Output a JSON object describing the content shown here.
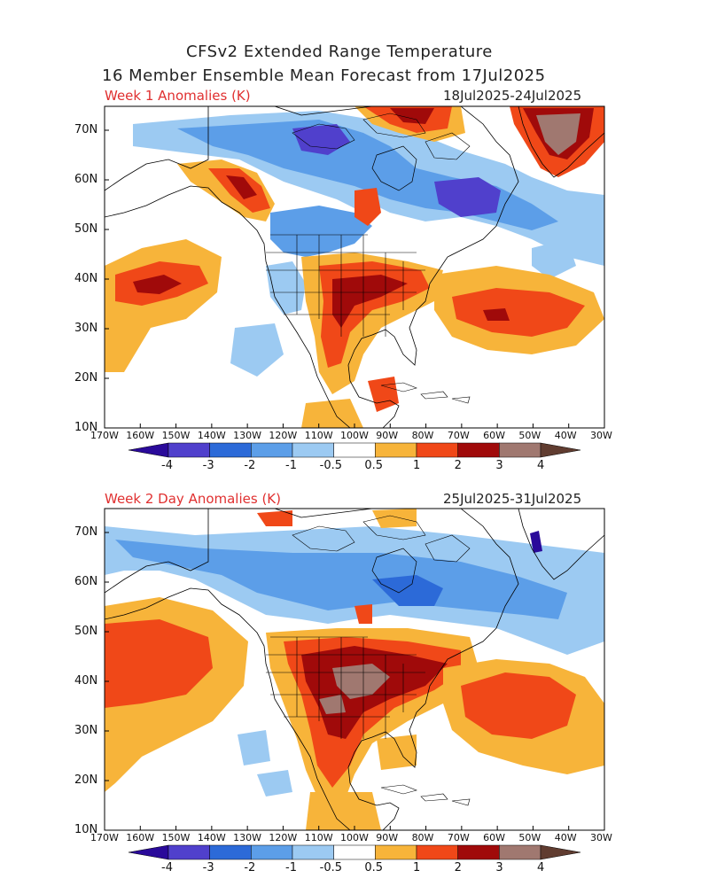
{
  "header": {
    "title_line1": "CFSv2 Extended Range Temperature",
    "title_line2": "16 Member Ensemble Mean Forecast from 17Jul2025"
  },
  "panels": [
    {
      "label": "Week 1 Anomalies (K)",
      "dates": "18Jul2025-24Jul2025"
    },
    {
      "label": "Week 2 Day Anomalies (K)",
      "dates": "25Jul2025-31Jul2025"
    }
  ],
  "axes": {
    "lat_ticks": [
      "70N",
      "60N",
      "50N",
      "40N",
      "30N",
      "20N",
      "10N"
    ],
    "lon_ticks": [
      "170W",
      "160W",
      "150W",
      "140W",
      "130W",
      "120W",
      "110W",
      "100W",
      "90W",
      "80W",
      "70W",
      "60W",
      "50W",
      "40W",
      "30W"
    ]
  },
  "colorbar": {
    "labels": [
      "-4",
      "-3",
      "-2",
      "-1",
      "-0.5",
      "0.5",
      "1",
      "2",
      "3",
      "4"
    ],
    "colors": [
      "#2a0a9a",
      "#5040cc",
      "#2c6ad8",
      "#5c9ee8",
      "#9ccaf2",
      "#ffffff",
      "#f7b43a",
      "#f04818",
      "#a00a0a",
      "#a07870",
      "#603c30"
    ]
  }
}
